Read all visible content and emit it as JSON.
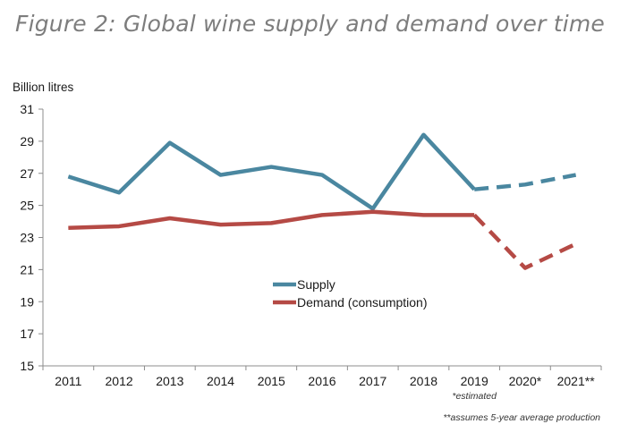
{
  "figure_title": "Figure 2: Global wine supply and demand over time",
  "chart_data": {
    "type": "line",
    "ylabel": "Billion litres",
    "xlabel": "",
    "ylim": [
      15,
      31
    ],
    "yticks": [
      15,
      17,
      19,
      21,
      23,
      25,
      27,
      29,
      31
    ],
    "categories": [
      "2011",
      "2012",
      "2013",
      "2014",
      "2015",
      "2016",
      "2017",
      "2018",
      "2019",
      "2020*",
      "2021**"
    ],
    "series": [
      {
        "name": "Supply",
        "color": "#4a87a0",
        "values": [
          26.8,
          25.8,
          28.9,
          26.9,
          27.4,
          26.9,
          24.8,
          29.4,
          26.0,
          26.3,
          26.9
        ],
        "dashed_from_index": 8
      },
      {
        "name": "Demand (consumption)",
        "color": "#b54a45",
        "values": [
          23.6,
          23.7,
          24.2,
          23.8,
          23.9,
          24.4,
          24.6,
          24.4,
          24.4,
          21.1,
          22.6
        ],
        "dashed_from_index": 8
      }
    ],
    "legend_position": "center",
    "grid": false,
    "notes": [
      "*estimated",
      "**assumes 5-year average production"
    ]
  }
}
